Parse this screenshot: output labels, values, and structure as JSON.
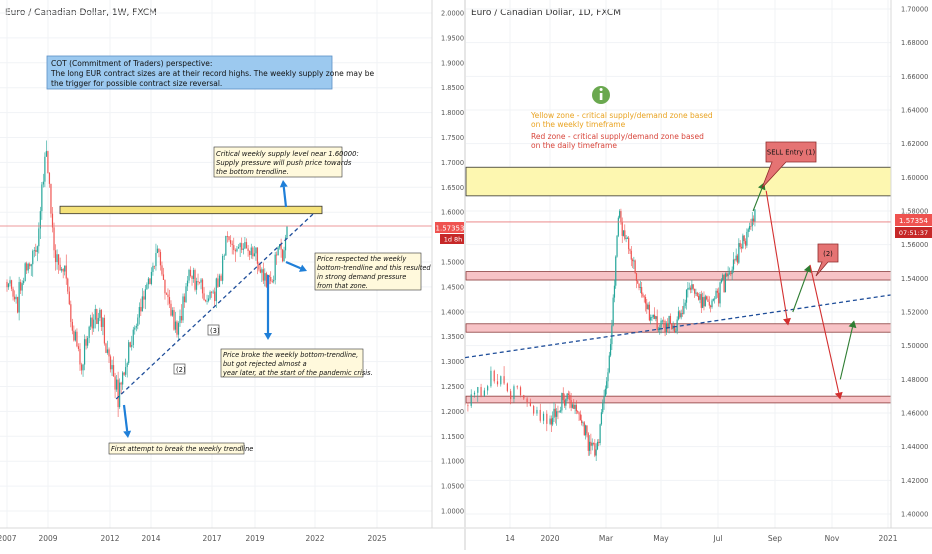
{
  "chart_data": [
    {
      "type": "candlestick",
      "title": "Euro / Canadian Dollar, 1W, FXCM",
      "x_ticks": [
        "2007",
        "2009",
        "2012",
        "2014",
        "2017",
        "2019",
        "2022",
        "2025"
      ],
      "y_ticks": [
        "1.00000",
        "1.05000",
        "1.10000",
        "1.15000",
        "1.20000",
        "1.25000",
        "1.30000",
        "1.35000",
        "1.40000",
        "1.45000",
        "1.50000",
        "1.55000",
        "1.60000",
        "1.65000",
        "1.70000",
        "1.75000",
        "1.80000",
        "1.85000",
        "1.90000",
        "1.95000",
        "2.00000"
      ],
      "ylim": [
        0.97,
        2.01
      ],
      "price_label": "1.57353",
      "countdown_label": "1d 8h",
      "approx_closes": [
        {
          "x": "2007",
          "y": 1.46
        },
        {
          "x": "2007.5",
          "y": 1.42
        },
        {
          "x": "2008",
          "y": 1.48
        },
        {
          "x": "2008.5",
          "y": 1.55
        },
        {
          "x": "2008.9",
          "y": 1.73
        },
        {
          "x": "2009.3",
          "y": 1.52
        },
        {
          "x": "2009.8",
          "y": 1.47
        },
        {
          "x": "2010.3",
          "y": 1.35
        },
        {
          "x": "2010.6",
          "y": 1.29
        },
        {
          "x": "2011",
          "y": 1.38
        },
        {
          "x": "2011.5",
          "y": 1.39
        },
        {
          "x": "2012",
          "y": 1.31
        },
        {
          "x": "2012.4",
          "y": 1.23
        },
        {
          "x": "2012.8",
          "y": 1.3
        },
        {
          "x": "2013.3",
          "y": 1.38
        },
        {
          "x": "2013.8",
          "y": 1.45
        },
        {
          "x": "2014.3",
          "y": 1.52
        },
        {
          "x": "2014.8",
          "y": 1.42
        },
        {
          "x": "2015.3",
          "y": 1.36
        },
        {
          "x": "2015.8",
          "y": 1.48
        },
        {
          "x": "2016.3",
          "y": 1.46
        },
        {
          "x": "2016.8",
          "y": 1.42
        },
        {
          "x": "2017.3",
          "y": 1.45
        },
        {
          "x": "2017.7",
          "y": 1.55
        },
        {
          "x": "2018",
          "y": 1.53
        },
        {
          "x": "2018.5",
          "y": 1.53
        },
        {
          "x": "2019",
          "y": 1.52
        },
        {
          "x": "2019.5",
          "y": 1.47
        },
        {
          "x": "2019.9",
          "y": 1.46
        },
        {
          "x": "2020.2",
          "y": 1.55
        },
        {
          "x": "2020.4",
          "y": 1.5
        },
        {
          "x": "2020.6",
          "y": 1.57
        }
      ],
      "zones": [
        {
          "color": "#f5e27a",
          "from": 1.597,
          "to": 1.612
        }
      ],
      "trendline": {
        "from": {
          "x": "2012.3",
          "y": 1.225
        },
        "to": {
          "x": "2022",
          "y": 1.6
        }
      },
      "horizontal_line": {
        "y": 1.6095,
        "color": "#e8787a"
      },
      "markers": [
        "(2)",
        "(3)"
      ],
      "annotations": {
        "cot_box": {
          "line1": "COT (Commitment of Traders) perspective:",
          "line2": "The long EUR contract sizes are at their record highs. The weekly supply zone may be",
          "line3": "the trigger for possible contract size reversal."
        },
        "supply_note": {
          "line1": "Critical weekly supply level near 1.60000:",
          "line2": "Supply pressure will push price towards",
          "line3": "the bottom trendline."
        },
        "respect_note": {
          "line1": "Price respected the weekly",
          "line2": "bottom-trendline and this resulted",
          "line3": "in strong demand pressure",
          "line4": "from that zone."
        },
        "broke_note": {
          "line1": "Price broke the weekly bottom-trendline,",
          "line2": "but got rejected almost a",
          "line3": "year later, at the start of the pandemic crisis."
        },
        "first_note": {
          "line1": "First attempt to break the weekly trendline"
        }
      }
    },
    {
      "type": "candlestick",
      "title": "Euro / Canadian Dollar, 1D, FXCM",
      "x_ticks": [
        "14",
        "2020",
        "Mar",
        "May",
        "Jul",
        "Sep",
        "Nov",
        "2021"
      ],
      "y_ticks": [
        "1.40000",
        "1.42000",
        "1.44000",
        "1.46000",
        "1.48000",
        "1.50000",
        "1.52000",
        "1.54000",
        "1.56000",
        "1.58000",
        "1.60000",
        "1.62000",
        "1.64000",
        "1.66000",
        "1.68000",
        "1.70000"
      ],
      "ylim": [
        1.388,
        1.708
      ],
      "price_label": "1.57354",
      "countdown_label": "07:51:37",
      "approx_closes": [
        {
          "x": "2019-10-15",
          "y": 1.46
        },
        {
          "x": "2019-11-01",
          "y": 1.47
        },
        {
          "x": "2019-11-20",
          "y": 1.465
        },
        {
          "x": "2019-12-10",
          "y": 1.48
        },
        {
          "x": "2020-01-01",
          "y": 1.455
        },
        {
          "x": "2020-01-20",
          "y": 1.47
        },
        {
          "x": "2020-02-05",
          "y": 1.455
        },
        {
          "x": "2020-02-20",
          "y": 1.435
        },
        {
          "x": "2020-03-05",
          "y": 1.49
        },
        {
          "x": "2020-03-15",
          "y": 1.58
        },
        {
          "x": "2020-03-25",
          "y": 1.56
        },
        {
          "x": "2020-04-10",
          "y": 1.53
        },
        {
          "x": "2020-04-25",
          "y": 1.515
        },
        {
          "x": "2020-05-15",
          "y": 1.51
        },
        {
          "x": "2020-06-01",
          "y": 1.535
        },
        {
          "x": "2020-06-15",
          "y": 1.525
        },
        {
          "x": "2020-07-01",
          "y": 1.53
        },
        {
          "x": "2020-07-15",
          "y": 1.545
        },
        {
          "x": "2020-08-01",
          "y": 1.565
        },
        {
          "x": "2020-08-10",
          "y": 1.575
        }
      ],
      "zones": [
        {
          "color": "#fdf7b0",
          "from": 1.589,
          "to": 1.606
        },
        {
          "color": "#f7c3c6",
          "from": 1.539,
          "to": 1.544
        },
        {
          "color": "#f7c3c6",
          "from": 1.508,
          "to": 1.513
        },
        {
          "color": "#f7c3c6",
          "from": 1.466,
          "to": 1.47
        }
      ],
      "trendline": {
        "from": {
          "x": "2019-10-01",
          "y": 1.482
        },
        "to": {
          "x": "2021-01-15",
          "y": 1.531
        }
      },
      "horizontal_line": {
        "y": 1.5735,
        "color": "#e8787a"
      },
      "info_icon": "info-icon",
      "legend_notes": {
        "yellow_line1": "Yellow zone - critical supply/demand zone based",
        "yellow_line2": "on the weekly timeframe",
        "red_line1": "Red zone - critical supply/demand zone based",
        "red_line2": "on the daily timeframe"
      },
      "labels": {
        "sell_entry": "SELL Entry (1)",
        "second": "(2)"
      },
      "projection": [
        {
          "from": {
            "x": "2020-08-08",
            "y": 1.58
          },
          "to": {
            "x": "2020-08-20",
            "y": 1.597
          },
          "color": "#2e7d32"
        },
        {
          "from": {
            "x": "2020-08-22",
            "y": 1.592
          },
          "to": {
            "x": "2020-09-15",
            "y": 1.512
          },
          "color": "#d32f2f"
        },
        {
          "from": {
            "x": "2020-09-20",
            "y": 1.52
          },
          "to": {
            "x": "2020-10-08",
            "y": 1.548
          },
          "color": "#2e7d32"
        },
        {
          "from": {
            "x": "2020-10-08",
            "y": 1.548
          },
          "to": {
            "x": "2020-11-10",
            "y": 1.468
          },
          "color": "#d32f2f"
        },
        {
          "from": {
            "x": "2020-11-10",
            "y": 1.48
          },
          "to": {
            "x": "2020-11-25",
            "y": 1.515
          },
          "color": "#2e7d32"
        }
      ]
    }
  ],
  "colors": {
    "up": "#26a69a",
    "down": "#ef5350",
    "trend": "#1f4e9a",
    "arrow": "#1f7fd8"
  }
}
